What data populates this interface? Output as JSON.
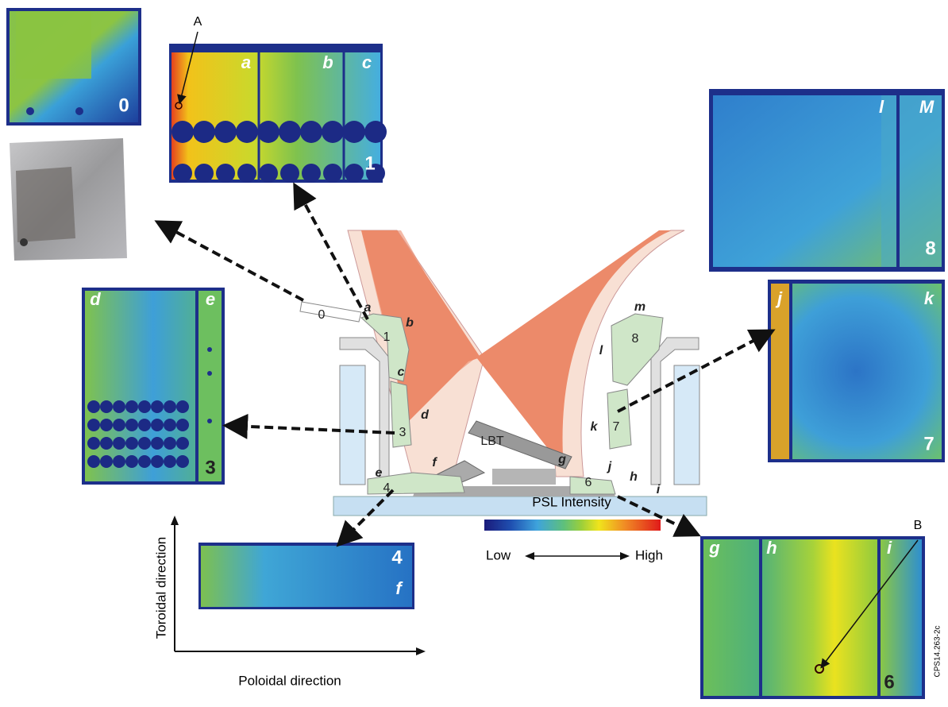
{
  "panels": [
    {
      "tile": "0",
      "letters": []
    },
    {
      "tile": "1",
      "letters": [
        "a",
        "b",
        "c"
      ]
    },
    {
      "tile": "3",
      "letters": [
        "d",
        "e"
      ]
    },
    {
      "tile": "4",
      "letters": [
        "f"
      ]
    },
    {
      "tile": "6",
      "letters": [
        "g",
        "h",
        "i"
      ]
    },
    {
      "tile": "7",
      "letters": [
        "j",
        "k"
      ]
    },
    {
      "tile": "8",
      "letters": [
        "l",
        "M"
      ]
    }
  ],
  "points": [
    "A",
    "B"
  ],
  "divertor_labels": [
    "0",
    "a",
    "1",
    "b",
    "c",
    "d",
    "3",
    "e",
    "4",
    "f",
    "LBT",
    "g",
    "6",
    "j",
    "h",
    "i",
    "k",
    "7",
    "l",
    "8",
    "m"
  ],
  "legend": {
    "title": "PSL Intensity",
    "low": "Low",
    "high": "High"
  },
  "axes": {
    "vertical": "Toroidal direction",
    "horizontal": "Poloidal direction"
  },
  "figure_id": "CPS14.263-2c"
}
